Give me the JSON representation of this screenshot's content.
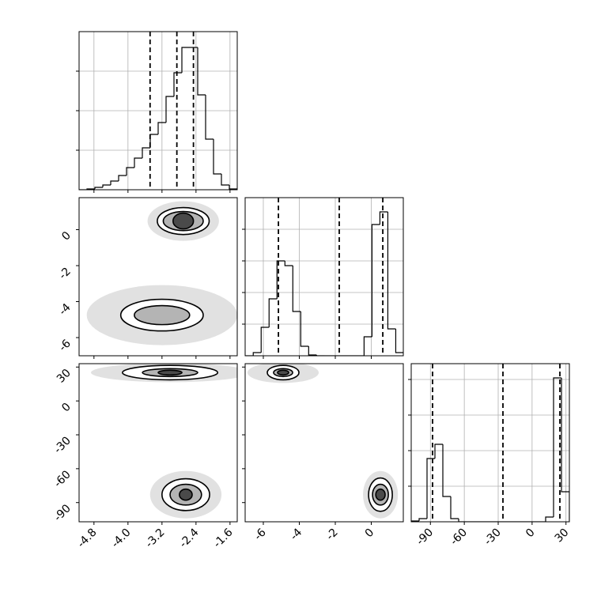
{
  "chart_data": {
    "type": "corner",
    "grid": true,
    "params": [
      {
        "lim": [
          -5.15,
          -1.43
        ],
        "ticks": [
          -4.8,
          {
            "value": -4,
            "label": "-4.0"
          },
          -3.2,
          -2.4,
          -1.6
        ]
      },
      {
        "lim": [
          -7.01,
          1.78
        ],
        "ticks": [
          -6,
          -4,
          -2,
          0
        ]
      },
      {
        "lim": [
          -107,
          33
        ],
        "ticks": [
          -90,
          -60,
          -30,
          0,
          30
        ]
      }
    ],
    "histograms": [
      {
        "bins": [
          -5.15,
          -4.964,
          -4.778,
          -4.592,
          -4.406,
          -4.22,
          -4.034,
          -3.848,
          -3.662,
          -3.476,
          -3.29,
          -3.104,
          -2.918,
          -2.732,
          -2.546,
          -2.36,
          -2.174,
          -1.988,
          -1.802,
          -1.616,
          -1.43
        ],
        "values": [
          0,
          0.005,
          0.015,
          0.03,
          0.055,
          0.09,
          0.14,
          0.2,
          0.265,
          0.35,
          0.425,
          0.59,
          0.74,
          0.9,
          0.9,
          0.6,
          0.32,
          0.1,
          0.03,
          0.005
        ],
        "ylim": [
          0,
          1
        ],
        "yticks": [
          0.25,
          0.5,
          0.75
        ],
        "quantiles": [
          -3.48,
          -2.85,
          -2.46
        ]
      },
      {
        "bins": [
          -7.0,
          -6.56,
          -6.12,
          -5.68,
          -5.24,
          -4.8,
          -4.36,
          -3.92,
          -3.48,
          -3.04,
          -2.6,
          -2.16,
          -1.72,
          -1.28,
          -0.84,
          -0.4,
          0.04,
          0.48,
          0.92,
          1.36,
          1.8
        ],
        "values": [
          0,
          0.02,
          0.18,
          0.36,
          0.6,
          0.57,
          0.28,
          0.06,
          0.005,
          0,
          0,
          0,
          0,
          0,
          0,
          0.12,
          0.83,
          0.91,
          0.17,
          0.02
        ],
        "ylim": [
          0,
          1
        ],
        "yticks": [
          0.2,
          0.4,
          0.6,
          0.8
        ],
        "quantiles": [
          -5.16,
          -1.78,
          0.64
        ]
      },
      {
        "bins": [
          -107,
          -100,
          -93,
          -86,
          -79,
          -72,
          -65,
          -58,
          -51,
          -44,
          -37,
          -30,
          -23,
          -16,
          -9,
          -2,
          5,
          12,
          19,
          26,
          33
        ],
        "values": [
          0.005,
          0.02,
          0.4,
          0.49,
          0.16,
          0.02,
          0,
          0,
          0,
          0,
          0,
          0,
          0,
          0,
          0,
          0,
          0,
          0.03,
          0.91,
          0.19
        ],
        "ylim": [
          0,
          1
        ],
        "yticks": [
          0.225,
          0.45,
          0.675,
          0.9
        ],
        "quantiles": [
          -88.1,
          -25.8,
          24.6
        ]
      }
    ],
    "level_colors": [
      "#d4d4d4",
      "#ffffff",
      "#b4b4b4",
      "#4a4a4a"
    ],
    "pairs": [
      {
        "row": 1,
        "col": 0,
        "blobs": [
          {
            "center": [
              -2.7,
              0.48
            ],
            "radii": [
              [
                0.84,
                1.1
              ],
              [
                0.61,
                0.75
              ],
              [
                0.47,
                0.53
              ],
              [
                0.24,
                0.44
              ]
            ]
          },
          {
            "center": [
              -3.2,
              -4.75
            ],
            "radii": [
              [
                1.77,
                1.67
              ],
              [
                0.97,
                0.88
              ],
              [
                0.65,
                0.53
              ]
            ]
          }
        ]
      },
      {
        "row": 2,
        "col": 0,
        "blobs": [
          {
            "center": [
              -3.01,
              25.1
            ],
            "radii": [
              [
                1.86,
                8.5
              ],
              [
                1.12,
                6.4
              ],
              [
                0.65,
                3.5
              ],
              [
                0.28,
                2.1
              ]
            ]
          },
          {
            "center": [
              -2.64,
              -83
            ],
            "radii": [
              [
                0.84,
                21
              ],
              [
                0.56,
                14.1
              ],
              [
                0.37,
                9.2
              ],
              [
                0.15,
                4.9
              ]
            ]
          }
        ]
      },
      {
        "row": 2,
        "col": 1,
        "blobs": [
          {
            "center": [
              -4.9,
              25.1
            ],
            "radii": [
              [
                1.98,
                9.2
              ],
              [
                0.88,
                6.4
              ],
              [
                0.53,
                3.5
              ],
              [
                0.31,
                2.1
              ]
            ]
          },
          {
            "center": [
              0.51,
              -83
            ],
            "radii": [
              [
                0.97,
                21
              ],
              [
                0.66,
                14.8
              ],
              [
                0.44,
                9.2
              ],
              [
                0.26,
                4.9
              ]
            ]
          }
        ]
      }
    ]
  }
}
